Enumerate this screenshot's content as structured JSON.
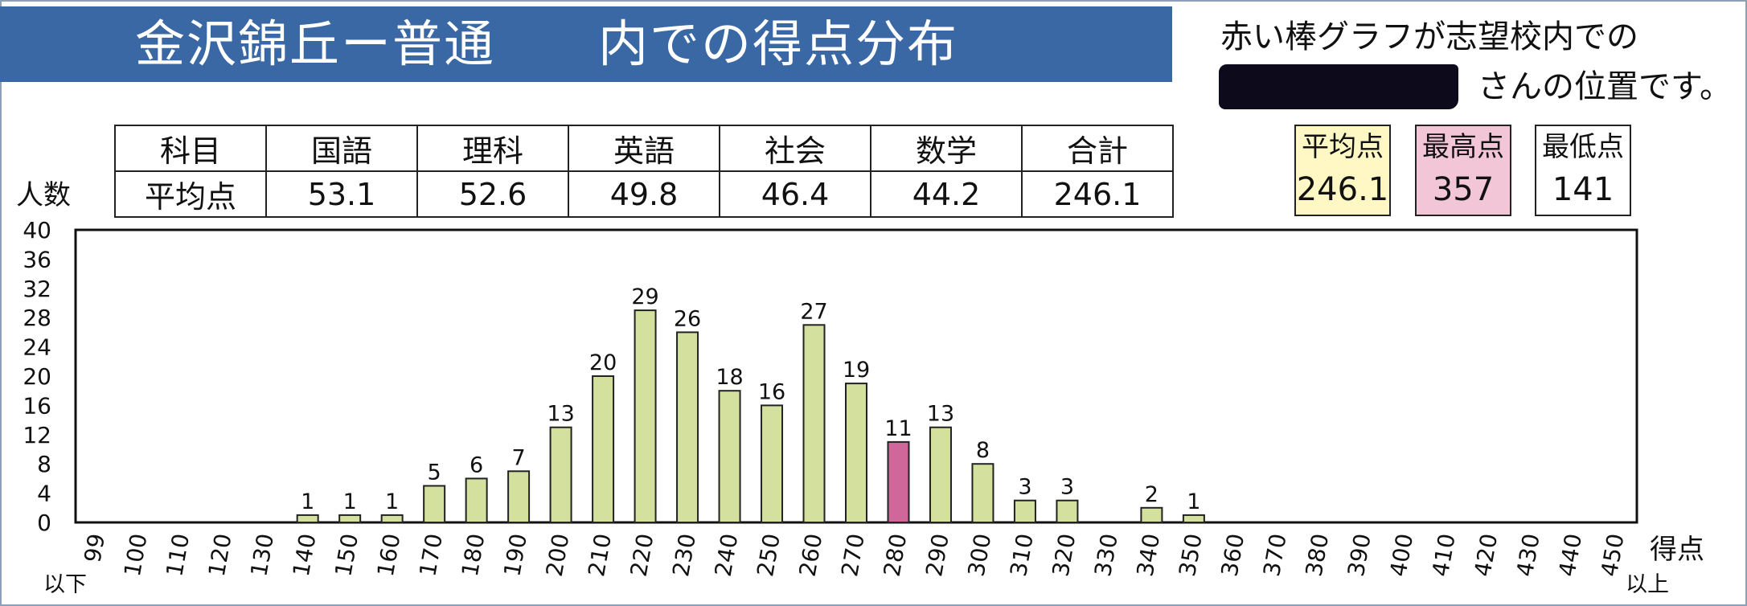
{
  "header": {
    "title": "金沢錦丘ー普通　　内での得点分布",
    "note_line1": "赤い棒グラフが志望校内での",
    "note_line2": "さんの位置です。"
  },
  "average_table": {
    "header_row": [
      "科目",
      "国語",
      "理科",
      "英語",
      "社会",
      "数学",
      "合計"
    ],
    "value_row": [
      "平均点",
      "53.1",
      "52.6",
      "49.8",
      "46.4",
      "44.2",
      "246.1"
    ]
  },
  "stats": [
    {
      "label": "平均点",
      "value": "246.1",
      "color": "#fff8c4"
    },
    {
      "label": "最高点",
      "value": "357",
      "color": "#f2c6d7"
    },
    {
      "label": "最低点",
      "value": "141",
      "color": "#ffffff"
    }
  ],
  "chart_data": {
    "type": "bar",
    "ylabel": "人数",
    "xlabel": "得点",
    "ylim": [
      0,
      40
    ],
    "yticks": [
      0,
      4,
      8,
      12,
      16,
      20,
      24,
      28,
      32,
      36,
      40
    ],
    "categories": [
      "99",
      "100",
      "110",
      "120",
      "130",
      "140",
      "150",
      "160",
      "170",
      "180",
      "190",
      "200",
      "210",
      "220",
      "230",
      "240",
      "250",
      "260",
      "270",
      "280",
      "290",
      "300",
      "310",
      "320",
      "330",
      "340",
      "350",
      "360",
      "370",
      "380",
      "390",
      "400",
      "410",
      "420",
      "430",
      "440",
      "450"
    ],
    "values": [
      0,
      0,
      0,
      0,
      0,
      1,
      1,
      1,
      5,
      6,
      7,
      13,
      20,
      29,
      26,
      18,
      16,
      27,
      19,
      11,
      13,
      8,
      3,
      3,
      0,
      2,
      1,
      0,
      0,
      0,
      0,
      0,
      0,
      0,
      0,
      0,
      0
    ],
    "highlight_category": "280",
    "first_suffix": "以下",
    "last_suffix": "以上",
    "bar_color": "#d3e09e",
    "highlight_color": "#d0679a",
    "grid": false
  }
}
